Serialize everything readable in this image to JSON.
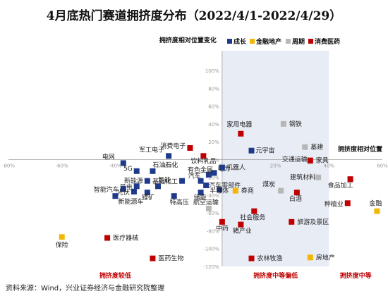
{
  "chart_data": {
    "type": "scatter",
    "title": "4月底热门赛道拥挤度分布（2022/4/1-2022/4/29）",
    "xlabel": "拥挤度相对位置",
    "ylabel": "拥挤度相对位置变化",
    "xlim": [
      -80,
      60
    ],
    "ylim": [
      -120,
      100
    ],
    "x_ticks": [
      "-80%",
      "-60%",
      "-40%",
      "-20%",
      "0%",
      "20%",
      "40%",
      "60%"
    ],
    "y_ticks": [
      "100%",
      "80%",
      "60%",
      "40%",
      "20%",
      "0%",
      "-20%",
      "-40%",
      "-60%",
      "-80%",
      "-100%",
      "-120%"
    ],
    "zones": [
      {
        "label": "拥挤度较低",
        "x_range": [
          -80,
          0
        ]
      },
      {
        "label": "拥挤度中等偏低",
        "x_range": [
          0,
          40
        ]
      },
      {
        "label": "拥挤度中等",
        "x_range": [
          40,
          60
        ]
      }
    ],
    "legend_position": "top-right",
    "series": [
      {
        "name": "成长",
        "color": "#1f3a8a",
        "points": [
          {
            "label": "军工电子",
            "x": -20,
            "y": 4
          },
          {
            "label": "电网",
            "x": -37,
            "y": -4
          },
          {
            "label": "5G",
            "x": -32,
            "y": -13
          },
          {
            "label": "石油石化",
            "x": -26,
            "y": -13
          },
          {
            "label": "新能源",
            "x": -28,
            "y": -24
          },
          {
            "label": "风电",
            "x": -32,
            "y": -30
          },
          {
            "label": "氢能",
            "x": -24,
            "y": -30
          },
          {
            "label": "智能汽车",
            "x": -37,
            "y": -33
          },
          {
            "label": "光伏",
            "x": -33,
            "y": -36
          },
          {
            "label": "锂矿",
            "x": -28,
            "y": -37
          },
          {
            "label": "新能源车",
            "x": -40,
            "y": -41
          },
          {
            "label": "基础化工",
            "x": -15,
            "y": -24
          },
          {
            "label": "电力",
            "x": -3,
            "y": -15
          },
          {
            "label": "特高压",
            "x": -18,
            "y": -41
          },
          {
            "label": "储能",
            "x": -8,
            "y": -37
          },
          {
            "label": "有色金属",
            "x": -5,
            "y": -17
          },
          {
            "label": "汽车",
            "x": -8,
            "y": -24
          },
          {
            "label": "汽车零部件",
            "x": -6,
            "y": -29
          },
          {
            "label": "半导体",
            "x": -1,
            "y": -34
          },
          {
            "label": "机器人",
            "x": 0,
            "y": -9
          },
          {
            "label": "元宇宙",
            "x": 11,
            "y": 10
          }
        ]
      },
      {
        "name": "金融地产",
        "color": "#f2b705",
        "points": [
          {
            "label": "券商",
            "x": 5,
            "y": -35
          },
          {
            "label": "保险",
            "x": -60,
            "y": -87
          },
          {
            "label": "房地产",
            "x": 33,
            "y": -110
          },
          {
            "label": "金融",
            "x": 58,
            "y": -58
          }
        ]
      },
      {
        "name": "周期",
        "color": "#b7b7b7",
        "points": [
          {
            "label": "钢铁",
            "x": 23,
            "y": 40
          },
          {
            "label": "基建",
            "x": 31,
            "y": 14
          },
          {
            "label": "交通运输",
            "x": 33,
            "y": -2
          },
          {
            "label": "建筑材料",
            "x": 36,
            "y": -20
          },
          {
            "label": "煤炭",
            "x": 22,
            "y": -35
          },
          {
            "label": "航空运输",
            "x": -5,
            "y": -55
          }
        ]
      },
      {
        "name": "消费医药",
        "color": "#c00000",
        "points": [
          {
            "label": "家用电器",
            "x": 7,
            "y": 29
          },
          {
            "label": "消费电子",
            "x": -12,
            "y": 13
          },
          {
            "label": "饮料乳品",
            "x": -7,
            "y": 4
          },
          {
            "label": "家具",
            "x": 33,
            "y": -1
          },
          {
            "label": "食品加工",
            "x": 48,
            "y": -22
          },
          {
            "label": "白酒",
            "x": 28,
            "y": -37
          },
          {
            "label": "种植业",
            "x": 47,
            "y": -49
          },
          {
            "label": "社会服务",
            "x": 12,
            "y": -58
          },
          {
            "label": "旅游及景区",
            "x": 26,
            "y": -70
          },
          {
            "label": "中药",
            "x": 0,
            "y": -70
          },
          {
            "label": "猪产业",
            "x": 7,
            "y": -73
          },
          {
            "label": "医疗器械",
            "x": -43,
            "y": -88
          },
          {
            "label": "医药生物",
            "x": -26,
            "y": -111
          },
          {
            "label": "农林牧渔",
            "x": 11,
            "y": -111
          }
        ]
      }
    ]
  },
  "source": "资料来源：Wind，兴业证券经济与金融研究院整理"
}
